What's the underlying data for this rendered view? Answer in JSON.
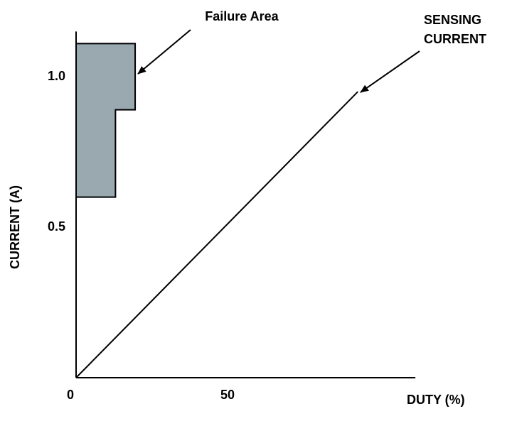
{
  "chart_data": {
    "type": "line",
    "x_label": "DUTY (%)",
    "y_label": "CURRENT (A)",
    "xlim": [
      0,
      112
    ],
    "ylim": [
      0,
      1.15
    ],
    "xticks": [
      0,
      50
    ],
    "yticks": [
      0.5,
      {
        "value": 1,
        "label": "1.0"
      }
    ],
    "series": [
      {
        "label": [
          "SENSING",
          "CURRENT"
        ],
        "color": "#000000",
        "x": [
          0,
          93
        ],
        "values": [
          0,
          0.95
        ]
      }
    ],
    "regions": [
      {
        "label": "Failure Area",
        "color": "#9aa9b0",
        "x": [
          0,
          0,
          19.5,
          19.5,
          13,
          13
        ],
        "y": [
          0.6,
          1.11,
          1.11,
          0.89,
          0.89,
          0.6
        ]
      }
    ]
  }
}
